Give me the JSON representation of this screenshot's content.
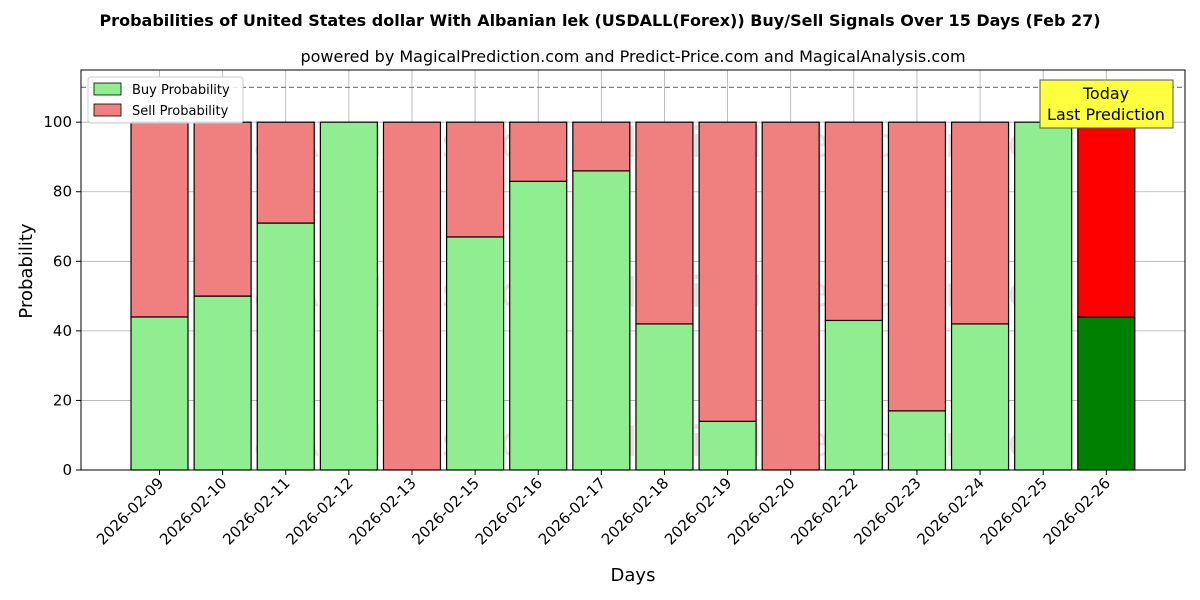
{
  "chart_data": {
    "type": "bar",
    "stacked": true,
    "title": "Probabilities of United States dollar With Albanian lek (USDALL(Forex)) Buy/Sell Signals Over 15 Days (Feb 27)",
    "subtitle": "powered by MagicalPrediction.com and Predict-Price.com and MagicalAnalysis.com",
    "xlabel": "Days",
    "ylabel": "Probability",
    "ylim": [
      0,
      115
    ],
    "yticks": [
      0,
      20,
      40,
      60,
      80,
      100
    ],
    "grid": true,
    "reference_line": 110,
    "legend_position": "top-left",
    "categories": [
      "2026-02-09",
      "2026-02-10",
      "2026-02-11",
      "2026-02-12",
      "2026-02-13",
      "2026-02-15",
      "2026-02-16",
      "2026-02-17",
      "2026-02-18",
      "2026-02-19",
      "2026-02-20",
      "2026-02-22",
      "2026-02-23",
      "2026-02-24",
      "2026-02-25",
      "2026-02-26"
    ],
    "series": [
      {
        "name": "Buy Probability",
        "color": "#90ee90",
        "highlight_color": "#008000",
        "values": [
          44,
          50,
          71,
          100,
          0,
          67,
          83,
          86,
          42,
          14,
          0,
          43,
          17,
          42,
          100,
          44
        ]
      },
      {
        "name": "Sell Probability",
        "color": "#f08080",
        "highlight_color": "#ff0000",
        "values": [
          56,
          50,
          29,
          0,
          100,
          33,
          17,
          14,
          58,
          86,
          100,
          57,
          83,
          58,
          0,
          56
        ]
      }
    ],
    "highlight_index": 15,
    "annotation": {
      "line1": "Today",
      "line2": "Last Prediction",
      "background": "#ffff40"
    },
    "watermarks": [
      "MagicalAnalysis.com",
      "MagicalPrediction.com"
    ]
  }
}
